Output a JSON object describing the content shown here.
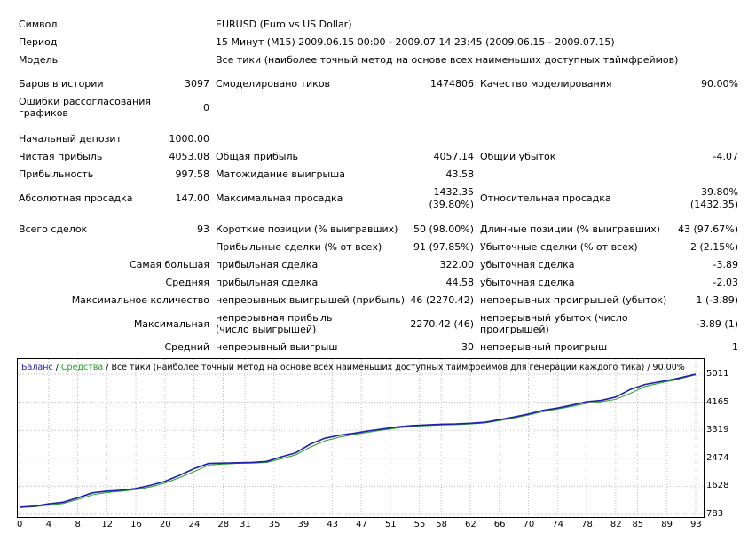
{
  "header": {
    "symbol_label": "Символ",
    "symbol_value": "EURUSD (Euro vs US Dollar)",
    "period_label": "Период",
    "period_value": "15 Минут (M15) 2009.06.15 00:00 - 2009.07.14 23:45 (2009.06.15 - 2009.07.15)",
    "model_label": "Модель",
    "model_value": "Все тики (наиболее точный метод на основе всех наименьших доступных таймфреймов)"
  },
  "stats": {
    "bars_label": "Баров в истории",
    "bars_value": "3097",
    "ticks_label": "Смоделировано тиков",
    "ticks_value": "1474806",
    "quality_label": "Качество моделирования",
    "quality_value": "90.00%",
    "errors_label": "Ошибки рассогласования графиков",
    "errors_value": "0",
    "deposit_label": "Начальный депозит",
    "deposit_value": "1000.00",
    "net_label": "Чистая прибыль",
    "net_value": "4053.08",
    "gross_profit_label": "Общая прибыль",
    "gross_profit_value": "4057.14",
    "gross_loss_label": "Общий убыток",
    "gross_loss_value": "-4.07",
    "pf_label": "Прибыльность",
    "pf_value": "997.58",
    "expected_label": "Матожидание выигрыша",
    "expected_value": "43.58",
    "abs_dd_label": "Абсолютная просадка",
    "abs_dd_value": "147.00",
    "max_dd_label": "Максимальная просадка",
    "max_dd_value1": "1432.35",
    "max_dd_value2": "(39.80%)",
    "rel_dd_label": "Относительная просадка",
    "rel_dd_value1": "39.80%",
    "rel_dd_value2": "(1432.35)",
    "trades_label": "Всего сделок",
    "trades_value": "93",
    "short_label": "Короткие позиции (% выигравших)",
    "short_value": "50 (98.00%)",
    "long_label": "Длинные позиции (% выигравших)",
    "long_value": "43 (97.67%)",
    "profit_trades_label": "Прибыльные сделки (% от всех)",
    "profit_trades_value": "91 (97.85%)",
    "loss_trades_label": "Убыточные сделки (% от всех)",
    "loss_trades_value": "2 (2.15%)",
    "largest_label": "Самая большая",
    "largest_profit_label": "прибыльная сделка",
    "largest_profit_value": "322.00",
    "largest_loss_label": "убыточная сделка",
    "largest_loss_value": "-3.89",
    "average_label": "Средняя",
    "average_profit_label": "прибыльная сделка",
    "average_profit_value": "44.58",
    "average_loss_label": "убыточная сделка",
    "average_loss_value": "-2.03",
    "maxcount_label": "Максимальное количество",
    "maxcount_wins_label": "непрерывных выигрышей (прибыль)",
    "maxcount_wins_value": "46 (2270.42)",
    "maxcount_losses_label": "непрерывных проигрышей (убыток)",
    "maxcount_losses_value": "1 (-3.89)",
    "max_label": "Максимальная",
    "max_profit_label": "непрерывная прибыль (число выигрышей)",
    "max_profit_value": "2270.42 (46)",
    "max_loss_label": "непрерывный убыток (число проигрышей)",
    "max_loss_value": "-3.89 (1)",
    "avg_label": "Средний",
    "avg_wins_label": "непрерывный выигрыш",
    "avg_wins_value": "30",
    "avg_losses_label": "непрерывный проигрыш",
    "avg_losses_value": "1"
  },
  "chart_legend": {
    "balance": "Баланс",
    "sep1": " / ",
    "equity": "Средства",
    "sep2": " / ",
    "rest": "Все тики (наиболее точный метод на основе всех наименьших доступных таймфреймов для генерации каждого тика) / 90.00%"
  },
  "colors": {
    "balance": "#1f1fa8",
    "equity": "#20a020",
    "grid": "#bfbfbf"
  },
  "chart_data": {
    "type": "line",
    "y_ticks": [
      "5011",
      "4165",
      "3319",
      "2474",
      "1628",
      "783"
    ],
    "x_ticks": [
      "0",
      "4",
      "8",
      "12",
      "16",
      "20",
      "24",
      "28",
      "31",
      "35",
      "39",
      "43",
      "47",
      "51",
      "55",
      "58",
      "62",
      "66",
      "70",
      "74",
      "78",
      "82",
      "85",
      "89",
      "93"
    ],
    "ylim": [
      783,
      5011
    ],
    "xlim": [
      0,
      93
    ],
    "series": [
      {
        "name": "Баланс",
        "x": [
          0,
          2,
          4,
          6,
          8,
          10,
          12,
          14,
          16,
          18,
          20,
          22,
          24,
          26,
          28,
          30,
          32,
          34,
          36,
          38,
          40,
          42,
          44,
          46,
          48,
          50,
          52,
          54,
          56,
          58,
          60,
          62,
          64,
          66,
          68,
          70,
          72,
          74,
          76,
          78,
          80,
          82,
          84,
          86,
          88,
          90,
          93
        ],
        "values": [
          1000,
          1030,
          1100,
          1150,
          1280,
          1430,
          1480,
          1510,
          1560,
          1660,
          1780,
          1960,
          2160,
          2320,
          2330,
          2340,
          2350,
          2380,
          2520,
          2640,
          2900,
          3080,
          3170,
          3230,
          3300,
          3360,
          3420,
          3460,
          3480,
          3500,
          3510,
          3530,
          3560,
          3640,
          3720,
          3810,
          3920,
          3990,
          4080,
          4180,
          4220,
          4320,
          4550,
          4700,
          4780,
          4860,
          5011
        ]
      },
      {
        "name": "Средства",
        "x": [
          0,
          2,
          4,
          6,
          8,
          10,
          12,
          14,
          16,
          18,
          20,
          22,
          24,
          26,
          28,
          30,
          32,
          34,
          36,
          38,
          40,
          42,
          44,
          46,
          48,
          50,
          52,
          54,
          56,
          58,
          60,
          62,
          64,
          66,
          68,
          70,
          72,
          74,
          76,
          78,
          80,
          82,
          84,
          86,
          88,
          90,
          93
        ],
        "values": [
          990,
          1010,
          1060,
          1110,
          1230,
          1370,
          1440,
          1480,
          1530,
          1610,
          1730,
          1890,
          2070,
          2270,
          2300,
          2320,
          2330,
          2350,
          2460,
          2580,
          2810,
          3000,
          3110,
          3190,
          3260,
          3330,
          3390,
          3440,
          3460,
          3480,
          3490,
          3510,
          3540,
          3610,
          3690,
          3780,
          3880,
          3960,
          4040,
          4130,
          4180,
          4250,
          4430,
          4640,
          4740,
          4830,
          4990
        ]
      }
    ]
  }
}
